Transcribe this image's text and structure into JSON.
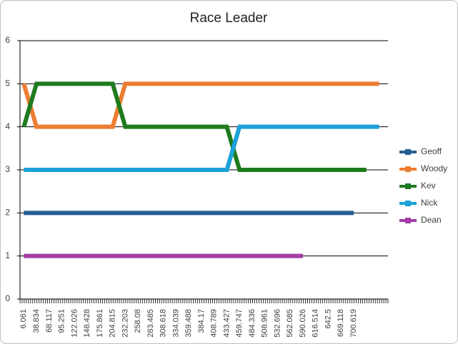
{
  "chart_data": {
    "type": "line",
    "title": "Race Leader",
    "categories": [
      "6.061",
      "38.834",
      "68.117",
      "95.251",
      "122.026",
      "148.428",
      "175.861",
      "204.815",
      "232.203",
      "258.08",
      "283.485",
      "308.618",
      "334.039",
      "359.488",
      "384.17",
      "408.789",
      "433.427",
      "459.747",
      "484.336",
      "508.961",
      "532.696",
      "562.085",
      "590.026",
      "616.514",
      "642.5",
      "669.118",
      "700.619",
      null,
      null
    ],
    "series": [
      {
        "name": "Geoff",
        "color": "#255e91",
        "values": [
          2,
          2,
          2,
          2,
          2,
          2,
          2,
          2,
          2,
          2,
          2,
          2,
          2,
          2,
          2,
          2,
          2,
          2,
          2,
          2,
          2,
          2,
          2,
          2,
          2,
          2,
          2,
          null,
          null
        ]
      },
      {
        "name": "Woody",
        "color": "#ed7d31",
        "values": [
          5,
          4,
          4,
          4,
          4,
          4,
          4,
          4,
          5,
          5,
          5,
          5,
          5,
          5,
          5,
          5,
          5,
          5,
          5,
          5,
          5,
          5,
          5,
          5,
          5,
          5,
          5,
          5,
          5
        ]
      },
      {
        "name": "Kev",
        "color": "#1e7b1e",
        "values": [
          4,
          5,
          5,
          5,
          5,
          5,
          5,
          5,
          4,
          4,
          4,
          4,
          4,
          4,
          4,
          4,
          4,
          3,
          3,
          3,
          3,
          3,
          3,
          3,
          3,
          3,
          3,
          3,
          null
        ]
      },
      {
        "name": "Nick",
        "color": "#1ca1d9",
        "values": [
          3,
          3,
          3,
          3,
          3,
          3,
          3,
          3,
          3,
          3,
          3,
          3,
          3,
          3,
          3,
          3,
          3,
          4,
          4,
          4,
          4,
          4,
          4,
          4,
          4,
          4,
          4,
          4,
          4
        ]
      },
      {
        "name": "Dean",
        "color": "#a43ca6",
        "values": [
          1,
          1,
          1,
          1,
          1,
          1,
          1,
          1,
          1,
          1,
          1,
          1,
          1,
          1,
          1,
          1,
          1,
          1,
          1,
          1,
          1,
          1,
          1,
          null,
          null,
          null,
          null,
          null,
          null
        ]
      }
    ],
    "ylim": [
      0,
      6
    ],
    "yticks": [
      0,
      1,
      2,
      3,
      4,
      5,
      6
    ],
    "grid": true,
    "legend": "right"
  }
}
